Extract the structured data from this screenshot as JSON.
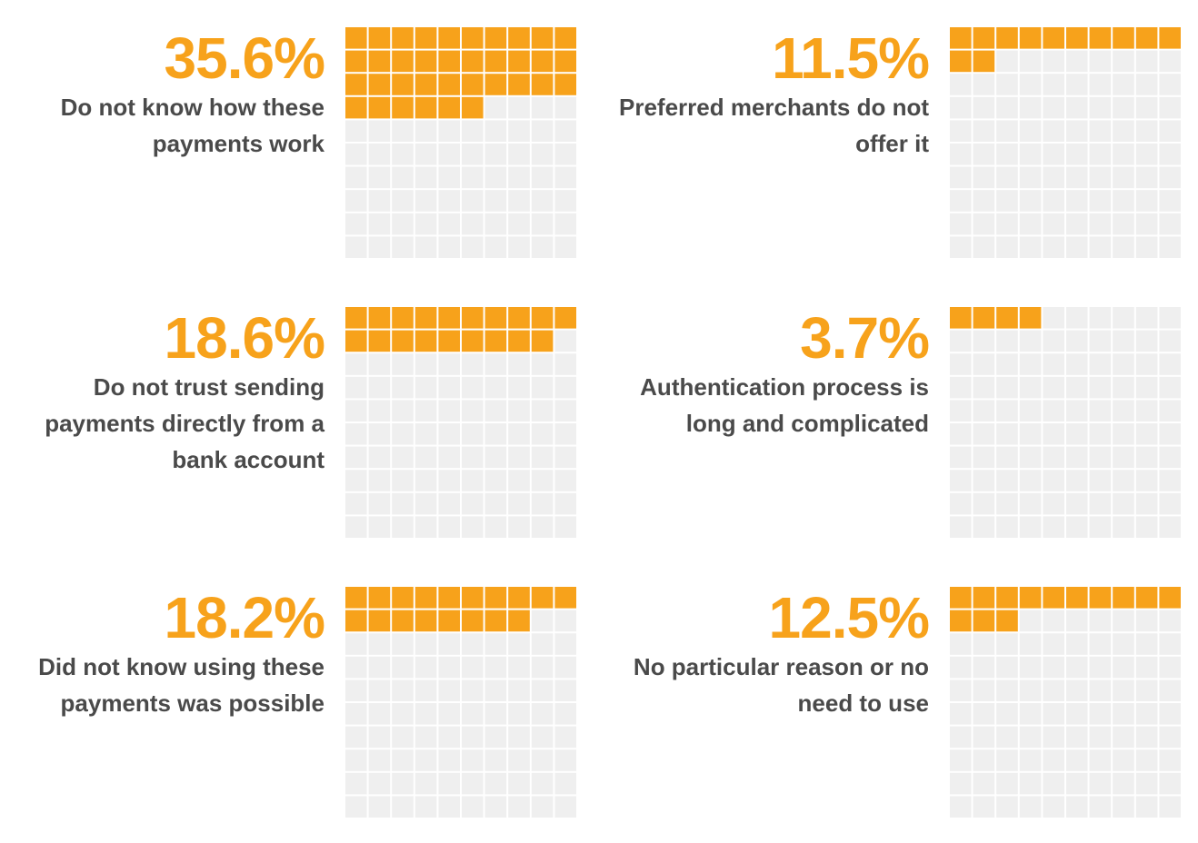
{
  "colors": {
    "filled": "#f7a21b",
    "empty": "#efefef",
    "value_text": "#f7a21b",
    "label_text": "#4a4a4a"
  },
  "chart_data": [
    {
      "type": "waffle",
      "grid": [
        10,
        10
      ],
      "value": 35.6,
      "value_label": "35.6%",
      "label": "Do not know how these payments work"
    },
    {
      "type": "waffle",
      "grid": [
        10,
        10
      ],
      "value": 11.5,
      "value_label": "11.5%",
      "label": "Preferred merchants do not offer it"
    },
    {
      "type": "waffle",
      "grid": [
        10,
        10
      ],
      "value": 18.6,
      "value_label": "18.6%",
      "label": "Do not trust sending payments directly from a bank account"
    },
    {
      "type": "waffle",
      "grid": [
        10,
        10
      ],
      "value": 3.7,
      "value_label": "3.7%",
      "label": "Authentication process is long and complicated"
    },
    {
      "type": "waffle",
      "grid": [
        10,
        10
      ],
      "value": 18.2,
      "value_label": "18.2%",
      "label": "Did not know using these payments was possible"
    },
    {
      "type": "waffle",
      "grid": [
        10,
        10
      ],
      "value": 12.5,
      "value_label": "12.5%",
      "label": "No particular reason or no need to use"
    }
  ]
}
